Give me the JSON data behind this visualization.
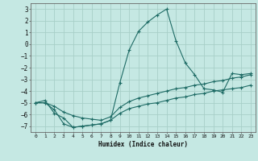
{
  "xlabel": "Humidex (Indice chaleur)",
  "ylabel": "",
  "background_color": "#c5e8e3",
  "grid_color": "#a8cfc8",
  "line_color": "#1e6b65",
  "xlim": [
    -0.5,
    23.5
  ],
  "ylim": [
    -7.5,
    3.5
  ],
  "xticks": [
    0,
    1,
    2,
    3,
    4,
    5,
    6,
    7,
    8,
    9,
    10,
    11,
    12,
    13,
    14,
    15,
    16,
    17,
    18,
    19,
    20,
    21,
    22,
    23
  ],
  "yticks": [
    -7,
    -6,
    -5,
    -4,
    -3,
    -2,
    -1,
    0,
    1,
    2,
    3
  ],
  "series1_x": [
    0,
    1,
    2,
    3,
    4,
    5,
    6,
    7,
    8,
    9,
    10,
    11,
    12,
    13,
    14,
    15,
    16,
    17,
    18,
    19,
    20,
    21,
    22,
    23
  ],
  "series1_y": [
    -5.0,
    -4.8,
    -5.9,
    -6.3,
    -7.1,
    -7.0,
    -6.9,
    -6.8,
    -6.5,
    -3.3,
    -0.5,
    1.1,
    1.9,
    2.5,
    3.0,
    0.3,
    -1.6,
    -2.6,
    -3.8,
    -3.9,
    -4.1,
    -2.5,
    -2.6,
    -2.5
  ],
  "series2_x": [
    0,
    1,
    2,
    3,
    4,
    5,
    6,
    7,
    8,
    9,
    10,
    11,
    12,
    13,
    14,
    15,
    16,
    17,
    18,
    19,
    20,
    21,
    22,
    23
  ],
  "series2_y": [
    -5.0,
    -5.0,
    -5.3,
    -5.8,
    -6.1,
    -6.3,
    -6.4,
    -6.5,
    -6.2,
    -5.4,
    -4.9,
    -4.6,
    -4.4,
    -4.2,
    -4.0,
    -3.8,
    -3.7,
    -3.5,
    -3.4,
    -3.2,
    -3.1,
    -2.9,
    -2.8,
    -2.6
  ],
  "series3_x": [
    0,
    1,
    2,
    3,
    4,
    5,
    6,
    7,
    8,
    9,
    10,
    11,
    12,
    13,
    14,
    15,
    16,
    17,
    18,
    19,
    20,
    21,
    22,
    23
  ],
  "series3_y": [
    -5.0,
    -5.0,
    -5.6,
    -6.8,
    -7.1,
    -7.0,
    -6.9,
    -6.8,
    -6.5,
    -5.9,
    -5.5,
    -5.3,
    -5.1,
    -5.0,
    -4.8,
    -4.6,
    -4.5,
    -4.3,
    -4.2,
    -4.0,
    -3.9,
    -3.8,
    -3.7,
    -3.5
  ]
}
